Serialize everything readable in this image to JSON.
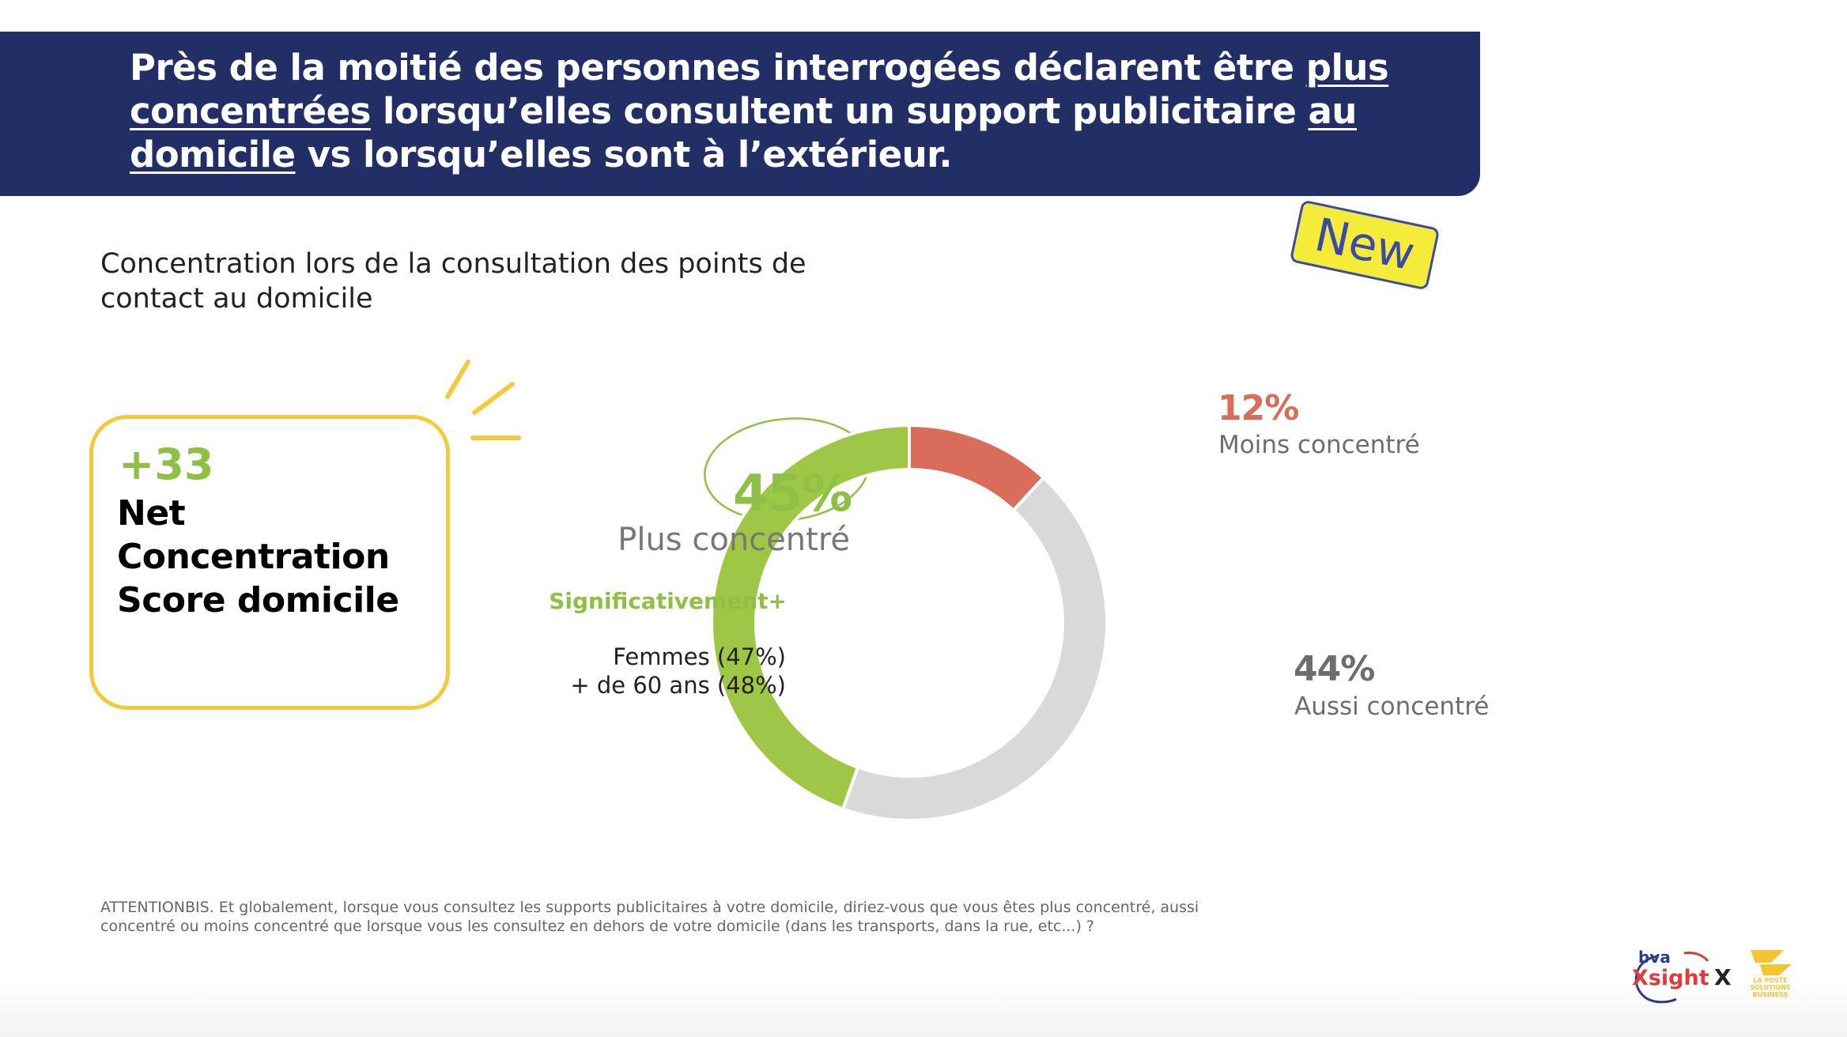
{
  "header": {
    "title_parts": [
      {
        "text": "Près de la moitié des personnes interrogées déclarent être ",
        "underline": false
      },
      {
        "text": "plus concentrées",
        "underline": true
      },
      {
        "text": " lorsqu’elles consultent un support publicitaire ",
        "underline": false
      },
      {
        "text": "au domicile",
        "underline": true
      },
      {
        "text": " vs lorsqu’elles sont à l’extérieur.",
        "underline": false
      }
    ]
  },
  "subtitle": "Concentration lors de la consultation des points de contact au domicile",
  "badge": "New",
  "score": {
    "value": "+33",
    "label": "Net Concentration Score domicile"
  },
  "chart_data": {
    "type": "pie",
    "donut": true,
    "start": "top",
    "slices": [
      {
        "label": "Moins concentré",
        "value": 12,
        "value_text": "12%",
        "color": "#d96d59"
      },
      {
        "label": "Aussi concentré",
        "value": 44,
        "value_text": "44%",
        "color": "#d9d9d9"
      },
      {
        "label": "Plus concentré",
        "value": 45,
        "value_text": "45%",
        "color": "#9fc746"
      }
    ]
  },
  "significance": {
    "title": "Significativement+",
    "items": [
      "Femmes (47%)",
      "+ de 60 ans (48%)"
    ]
  },
  "footnote": "ATTENTIONBIS. Et globalement, lorsque vous consultez les supports publicitaires à votre domicile, diriez-vous que vous êtes plus concentré, aussi concentré ou moins concentré que lorsque vous les consultez en dehors de votre domicile (dans les transports, dans la rue, etc...) ?",
  "logos": {
    "bva_small": "bva",
    "bva_main": "Xsight",
    "separator": "X",
    "poste_text": "LA POSTE SOLUTIONS BUSINESS"
  },
  "colors": {
    "header_bg": "#222e66",
    "accent_green": "#8dc044",
    "accent_yellow": "#f4ca3c",
    "moins": "#d96d59",
    "aussi": "#d9d9d9",
    "plus": "#9fc746",
    "badge_bg": "#f5ec3a",
    "badge_border": "#3b4aa8"
  }
}
